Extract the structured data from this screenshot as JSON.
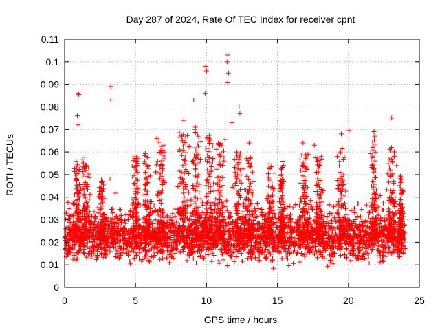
{
  "chart_data": {
    "type": "scatter",
    "title": "Day 287 of 2024, Rate Of TEC Index for receiver cpnt",
    "xlabel": "GPS time / hours",
    "ylabel": "ROTI / TECUs",
    "xlim": [
      0,
      25
    ],
    "ylim": [
      0,
      0.11
    ],
    "x_ticks": [
      "0",
      "5",
      "10",
      "15",
      "20",
      "25"
    ],
    "y_ticks": [
      "0",
      "0.01",
      "0.02",
      "0.03",
      "0.04",
      "0.05",
      "0.06",
      "0.07",
      "0.08",
      "0.09",
      "0.1",
      "0.11"
    ],
    "grid": true,
    "marker": "plus",
    "color": "#ff0000",
    "series": [
      {
        "name": "ROTI",
        "coverage_hours": [
          0,
          24
        ],
        "typical_band": [
          0.008,
          0.035
        ],
        "outliers": [
          {
            "x": 0.95,
            "y": 0.086
          },
          {
            "x": 1.0,
            "y": 0.0855
          },
          {
            "x": 0.9,
            "y": 0.076
          },
          {
            "x": 0.95,
            "y": 0.072
          },
          {
            "x": 3.25,
            "y": 0.089
          },
          {
            "x": 3.25,
            "y": 0.083
          },
          {
            "x": 9.95,
            "y": 0.098
          },
          {
            "x": 10.0,
            "y": 0.096
          },
          {
            "x": 9.9,
            "y": 0.086
          },
          {
            "x": 11.5,
            "y": 0.103
          },
          {
            "x": 11.45,
            "y": 0.1
          },
          {
            "x": 11.55,
            "y": 0.095
          },
          {
            "x": 11.5,
            "y": 0.091
          },
          {
            "x": 9.1,
            "y": 0.083
          },
          {
            "x": 12.3,
            "y": 0.08
          },
          {
            "x": 12.35,
            "y": 0.077
          },
          {
            "x": 23.05,
            "y": 0.075
          },
          {
            "x": 21.8,
            "y": 0.069
          },
          {
            "x": 21.85,
            "y": 0.067
          },
          {
            "x": 20.05,
            "y": 0.0695
          },
          {
            "x": 19.5,
            "y": 0.068
          },
          {
            "x": 11.8,
            "y": 0.073
          },
          {
            "x": 8.4,
            "y": 0.074
          },
          {
            "x": 6.5,
            "y": 0.066
          },
          {
            "x": 2.6,
            "y": 0.048
          },
          {
            "x": 3.2,
            "y": 0.048
          },
          {
            "x": 7.0,
            "y": 0.063
          },
          {
            "x": 17.6,
            "y": 0.063
          },
          {
            "x": 16.8,
            "y": 0.064
          },
          {
            "x": 13.0,
            "y": 0.064
          }
        ],
        "bursts": [
          {
            "center": 0.9,
            "width": 0.5,
            "peak": 0.056
          },
          {
            "center": 1.5,
            "width": 0.4,
            "peak": 0.058
          },
          {
            "center": 2.6,
            "width": 0.3,
            "peak": 0.047
          },
          {
            "center": 5.0,
            "width": 0.4,
            "peak": 0.058
          },
          {
            "center": 5.8,
            "width": 0.4,
            "peak": 0.06
          },
          {
            "center": 6.8,
            "width": 0.6,
            "peak": 0.065
          },
          {
            "center": 8.4,
            "width": 0.7,
            "peak": 0.07
          },
          {
            "center": 9.3,
            "width": 0.5,
            "peak": 0.072
          },
          {
            "center": 10.2,
            "width": 0.6,
            "peak": 0.068
          },
          {
            "center": 11.0,
            "width": 0.6,
            "peak": 0.066
          },
          {
            "center": 12.2,
            "width": 0.5,
            "peak": 0.062
          },
          {
            "center": 13.0,
            "width": 0.7,
            "peak": 0.058
          },
          {
            "center": 14.5,
            "width": 0.5,
            "peak": 0.055
          },
          {
            "center": 15.3,
            "width": 0.3,
            "peak": 0.056
          },
          {
            "center": 16.9,
            "width": 0.5,
            "peak": 0.06
          },
          {
            "center": 17.9,
            "width": 0.5,
            "peak": 0.058
          },
          {
            "center": 19.5,
            "width": 0.5,
            "peak": 0.062
          },
          {
            "center": 21.8,
            "width": 0.4,
            "peak": 0.066
          },
          {
            "center": 23.0,
            "width": 0.5,
            "peak": 0.062
          },
          {
            "center": 23.7,
            "width": 0.3,
            "peak": 0.05
          }
        ]
      }
    ]
  }
}
